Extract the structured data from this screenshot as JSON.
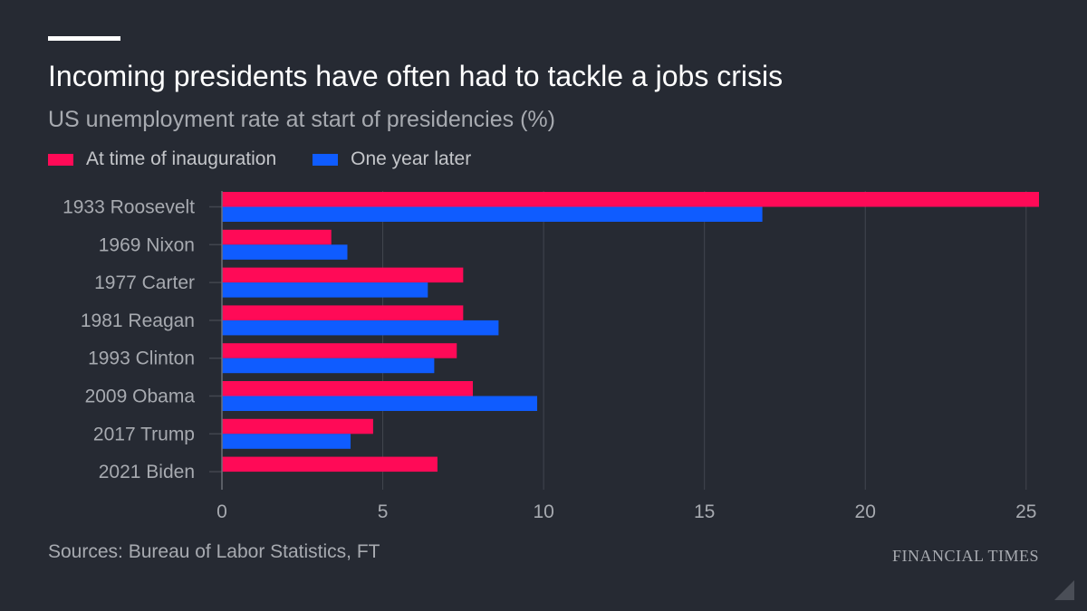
{
  "header": {
    "title": "Incoming presidents have often had to tackle a jobs crisis",
    "subtitle": "US unemployment rate at start of presidencies (%)"
  },
  "footer": {
    "source": "Sources: Bureau of Labor Statistics, FT",
    "brand": "FINANCIAL TIMES"
  },
  "colors": {
    "background": "#262a33",
    "inauguration": "#ff0a57",
    "one_year_later": "#0f5cff",
    "grid": "#42464f",
    "tick_text": "#a7aab0"
  },
  "chart_data": {
    "type": "bar",
    "orientation": "horizontal",
    "title": "Incoming presidents have often had to tackle a jobs crisis",
    "subtitle": "US unemployment rate at start of presidencies (%)",
    "categories": [
      "1933 Roosevelt",
      "1969 Nixon",
      "1977 Carter",
      "1981 Reagan",
      "1993 Clinton",
      "2009 Obama",
      "2017 Trump",
      "2021 Biden"
    ],
    "series": [
      {
        "name": "At time of inauguration",
        "color": "#ff0a57",
        "values": [
          25.4,
          3.4,
          7.5,
          7.5,
          7.3,
          7.8,
          4.7,
          6.7
        ]
      },
      {
        "name": "One year later",
        "color": "#0f5cff",
        "values": [
          16.8,
          3.9,
          6.4,
          8.6,
          6.6,
          9.8,
          4.0,
          null
        ]
      }
    ],
    "xlim": [
      0,
      25.4
    ],
    "xticks": [
      0,
      5,
      10,
      15,
      20,
      25
    ],
    "xlabel": "",
    "ylabel": "",
    "grid": "vertical",
    "legend": "top-left"
  }
}
